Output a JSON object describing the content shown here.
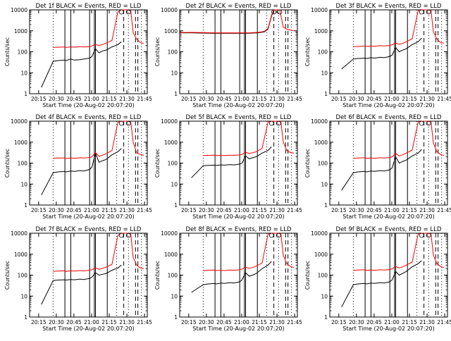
{
  "chart_data": [
    {
      "type": "line",
      "title": "Det 1f BLACK = Events, RED = LLD",
      "xlabel": "Start Time (20-Aug-02 20:07:20)",
      "ylabel": "Counts/sec",
      "y_scale": "log",
      "ylim": [
        1,
        10000
      ],
      "x_ticks": [
        "20:15",
        "20:30",
        "20:45",
        "21:00",
        "21:15",
        "21:30",
        "21:45"
      ],
      "y_ticks": [
        "1",
        "10",
        "100",
        "1000",
        "10000"
      ],
      "x_minutes": [
        10,
        20,
        24,
        30,
        31,
        35,
        38,
        43,
        46,
        51,
        53,
        56,
        59,
        62,
        65,
        70,
        75,
        78,
        80,
        84,
        86,
        88,
        91,
        94,
        97
      ],
      "series": [
        {
          "name": "Events",
          "color": "#000000",
          "values": [
            2,
            35,
            38,
            40,
            38,
            45,
            40,
            42,
            45,
            50,
            60,
            140,
            90,
            110,
            120,
            170,
            220,
            300,
            null,
            null,
            null,
            null,
            null,
            null,
            null
          ]
        },
        {
          "name": "LLD",
          "color": "#ff0000",
          "values": [
            null,
            160,
            165,
            170,
            160,
            170,
            165,
            175,
            170,
            175,
            190,
            220,
            200,
            220,
            260,
            350,
            8000,
            10000,
            10000,
            10000,
            9000,
            800,
            400,
            280,
            250
          ]
        }
      ],
      "black_vlines": [
        30,
        35,
        51,
        55,
        56,
        66
      ],
      "dashed_vlines": [
        80,
        90,
        92
      ],
      "dotted_vlines": [
        20,
        74,
        84,
        95
      ]
    },
    {
      "type": "line",
      "title": "Det 2f BLACK = Events, RED = LLD",
      "xlabel": "Start Time (20-Aug-02 20:07:20)",
      "ylabel": "Counts/sec",
      "y_scale": "log",
      "ylim": [
        1,
        10000
      ],
      "x_ticks": [
        "20:15",
        "20:30",
        "20:45",
        "21:00",
        "21:15",
        "21:30",
        "21:45"
      ],
      "y_ticks": [
        "1",
        "10",
        "100",
        "1000",
        "10000"
      ],
      "x_minutes": [
        0,
        10,
        20,
        30,
        40,
        50,
        60,
        66,
        70,
        72,
        75,
        78,
        80,
        82,
        85,
        88,
        91,
        94,
        97
      ],
      "series": [
        {
          "name": "Events",
          "color": "#000000",
          "values": [
            800,
            800,
            780,
            760,
            760,
            760,
            770,
            800,
            850,
            900,
            1200,
            5000,
            10000,
            10000,
            null,
            null,
            null,
            null,
            null
          ]
        },
        {
          "name": "LLD",
          "color": "#ff0000",
          "values": [
            820,
            840,
            820,
            800,
            800,
            800,
            810,
            840,
            900,
            950,
            1300,
            5500,
            10000,
            10000,
            10000,
            1500,
            1200,
            1100,
            1000
          ]
        }
      ],
      "black_vlines": [
        30,
        35,
        51,
        55,
        56,
        66
      ],
      "dashed_vlines": [
        80,
        90,
        92
      ],
      "dotted_vlines": [
        20,
        74,
        84,
        95
      ]
    },
    {
      "type": "line",
      "title": "Det 3f BLACK = Events, RED = LLD",
      "xlabel": "Start Time (20-Aug-02 20:07:20)",
      "ylabel": "Counts/sec",
      "y_scale": "log",
      "ylim": [
        1,
        10000
      ],
      "x_ticks": [
        "20:15",
        "20:30",
        "20:45",
        "21:00",
        "21:15",
        "21:30",
        "21:45"
      ],
      "y_ticks": [
        "1",
        "10",
        "100",
        "1000",
        "10000"
      ],
      "x_minutes": [
        10,
        20,
        24,
        30,
        31,
        35,
        38,
        43,
        46,
        51,
        53,
        56,
        59,
        62,
        65,
        70,
        75,
        78,
        80,
        84,
        86,
        88,
        91,
        94,
        97
      ],
      "series": [
        {
          "name": "Events",
          "color": "#000000",
          "values": [
            15,
            45,
            48,
            50,
            48,
            52,
            50,
            55,
            52,
            60,
            70,
            160,
            100,
            120,
            140,
            220,
            300,
            450,
            null,
            null,
            null,
            null,
            null,
            null,
            null
          ]
        },
        {
          "name": "LLD",
          "color": "#ff0000",
          "values": [
            null,
            175,
            180,
            190,
            180,
            190,
            185,
            195,
            190,
            200,
            215,
            260,
            230,
            250,
            300,
            420,
            9000,
            10000,
            10000,
            10000,
            9500,
            900,
            400,
            280,
            260
          ]
        }
      ],
      "black_vlines": [
        30,
        35,
        51,
        55,
        56,
        66
      ],
      "dashed_vlines": [
        80,
        90,
        92
      ],
      "dotted_vlines": [
        20,
        74,
        84,
        95
      ]
    },
    {
      "type": "line",
      "title": "Det 4f BLACK = Events, RED = LLD",
      "xlabel": "Start Time (20-Aug-02 20:07:20)",
      "ylabel": "Counts/sec",
      "y_scale": "log",
      "ylim": [
        1,
        10000
      ],
      "x_ticks": [
        "20:15",
        "20:30",
        "20:45",
        "21:00",
        "21:15",
        "21:30",
        "21:45"
      ],
      "y_ticks": [
        "1",
        "10",
        "100",
        "1000",
        "10000"
      ],
      "x_minutes": [
        10,
        20,
        24,
        30,
        31,
        35,
        38,
        43,
        46,
        51,
        53,
        56,
        59,
        62,
        65,
        70,
        75,
        78,
        80,
        84,
        86,
        88,
        91,
        94,
        97
      ],
      "series": [
        {
          "name": "Events",
          "color": "#000000",
          "values": [
            3,
            35,
            38,
            40,
            38,
            42,
            40,
            44,
            42,
            50,
            65,
            300,
            110,
            130,
            150,
            250,
            350,
            500,
            null,
            null,
            null,
            null,
            null,
            null,
            null
          ]
        },
        {
          "name": "LLD",
          "color": "#ff0000",
          "values": [
            null,
            170,
            175,
            175,
            165,
            175,
            170,
            180,
            175,
            185,
            200,
            320,
            210,
            240,
            280,
            400,
            9000,
            10000,
            10000,
            10000,
            9000,
            1000,
            300,
            260,
            240
          ]
        }
      ],
      "black_vlines": [
        30,
        35,
        51,
        55,
        56,
        66
      ],
      "dashed_vlines": [
        80,
        90,
        92
      ],
      "dotted_vlines": [
        20,
        74,
        84,
        95
      ]
    },
    {
      "type": "line",
      "title": "Det 5f BLACK = Events, RED = LLD",
      "xlabel": "Start Time (20-Aug-02 20:07:20)",
      "ylabel": "Counts/sec",
      "y_scale": "log",
      "ylim": [
        1,
        10000
      ],
      "x_ticks": [
        "20:15",
        "20:30",
        "20:45",
        "21:00",
        "21:15",
        "21:30",
        "21:45"
      ],
      "y_ticks": [
        "1",
        "10",
        "100",
        "1000",
        "10000"
      ],
      "x_minutes": [
        10,
        20,
        24,
        30,
        31,
        35,
        38,
        43,
        46,
        51,
        53,
        56,
        59,
        62,
        65,
        70,
        75,
        78,
        80,
        84,
        86,
        88,
        91,
        94,
        97
      ],
      "series": [
        {
          "name": "Events",
          "color": "#000000",
          "values": [
            20,
            75,
            78,
            80,
            78,
            82,
            80,
            85,
            82,
            90,
            100,
            220,
            160,
            180,
            200,
            300,
            400,
            600,
            null,
            null,
            null,
            null,
            null,
            null,
            null
          ]
        },
        {
          "name": "LLD",
          "color": "#ff0000",
          "values": [
            null,
            230,
            235,
            240,
            230,
            235,
            230,
            240,
            235,
            245,
            260,
            330,
            290,
            310,
            350,
            500,
            9000,
            10000,
            10000,
            10000,
            9500,
            1000,
            400,
            320,
            300
          ]
        }
      ],
      "black_vlines": [
        30,
        35,
        51,
        55,
        56,
        66
      ],
      "dashed_vlines": [
        80,
        90,
        92
      ],
      "dotted_vlines": [
        20,
        74,
        84,
        95
      ]
    },
    {
      "type": "line",
      "title": "Det 6f BLACK = Events, RED = LLD",
      "xlabel": "Start Time (20-Aug-02 20:07:20)",
      "ylabel": "Counts/sec",
      "y_scale": "log",
      "ylim": [
        1,
        10000
      ],
      "x_ticks": [
        "20:15",
        "20:30",
        "20:45",
        "21:00",
        "21:15",
        "21:30",
        "21:45"
      ],
      "y_ticks": [
        "1",
        "10",
        "100",
        "1000",
        "10000"
      ],
      "x_minutes": [
        10,
        20,
        24,
        30,
        31,
        35,
        38,
        43,
        46,
        51,
        53,
        56,
        59,
        62,
        65,
        70,
        75,
        78,
        80,
        84,
        86,
        88,
        91,
        94,
        97
      ],
      "series": [
        {
          "name": "Events",
          "color": "#000000",
          "values": [
            5,
            35,
            38,
            40,
            38,
            42,
            40,
            44,
            42,
            48,
            60,
            200,
            100,
            120,
            140,
            220,
            300,
            450,
            null,
            null,
            null,
            null,
            null,
            null,
            null
          ]
        },
        {
          "name": "LLD",
          "color": "#ff0000",
          "values": [
            null,
            170,
            175,
            180,
            170,
            175,
            170,
            180,
            175,
            185,
            200,
            290,
            220,
            250,
            300,
            420,
            9000,
            10000,
            10000,
            10000,
            9500,
            900,
            350,
            260,
            230
          ]
        }
      ],
      "black_vlines": [
        30,
        35,
        51,
        55,
        56,
        66
      ],
      "dashed_vlines": [
        80,
        90,
        92
      ],
      "dotted_vlines": [
        20,
        74,
        84,
        95
      ]
    },
    {
      "type": "line",
      "title": "Det 7f BLACK = Events, RED = LLD",
      "xlabel": "Start Time (20-Aug-02 20:07:20)",
      "ylabel": "Counts/sec",
      "y_scale": "log",
      "ylim": [
        1,
        10000
      ],
      "x_ticks": [
        "20:15",
        "20:30",
        "20:45",
        "21:00",
        "21:15",
        "21:30",
        "21:45"
      ],
      "y_ticks": [
        "1",
        "10",
        "100",
        "1000",
        "10000"
      ],
      "x_minutes": [
        10,
        20,
        24,
        30,
        31,
        35,
        38,
        43,
        46,
        51,
        53,
        56,
        59,
        62,
        65,
        70,
        75,
        78,
        80,
        84,
        86,
        88,
        91,
        94,
        97
      ],
      "series": [
        {
          "name": "Events",
          "color": "#000000",
          "values": [
            4,
            55,
            58,
            60,
            58,
            62,
            60,
            65,
            62,
            70,
            80,
            130,
            100,
            110,
            120,
            170,
            220,
            300,
            null,
            null,
            null,
            null,
            null,
            null,
            null
          ]
        },
        {
          "name": "LLD",
          "color": "#ff0000",
          "values": [
            null,
            150,
            155,
            160,
            150,
            160,
            155,
            165,
            160,
            170,
            180,
            220,
            190,
            210,
            240,
            330,
            8000,
            10000,
            10000,
            10000,
            9000,
            700,
            300,
            220,
            200
          ]
        }
      ],
      "black_vlines": [
        30,
        35,
        51,
        55,
        56,
        66
      ],
      "dashed_vlines": [
        80,
        90,
        92
      ],
      "dotted_vlines": [
        20,
        74,
        84,
        95
      ]
    },
    {
      "type": "line",
      "title": "Det 8f BLACK = Events, RED = LLD",
      "xlabel": "Start Time (20-Aug-02 20:07:20)",
      "ylabel": "Counts/sec",
      "y_scale": "log",
      "ylim": [
        1,
        10000
      ],
      "x_ticks": [
        "20:15",
        "20:30",
        "20:45",
        "21:00",
        "21:15",
        "21:30",
        "21:45"
      ],
      "y_ticks": [
        "1",
        "10",
        "100",
        "1000",
        "10000"
      ],
      "x_minutes": [
        10,
        20,
        24,
        30,
        31,
        35,
        38,
        43,
        46,
        51,
        53,
        56,
        59,
        62,
        65,
        70,
        75,
        78,
        80,
        84,
        86,
        88,
        91,
        94,
        97
      ],
      "series": [
        {
          "name": "Events",
          "color": "#000000",
          "values": [
            15,
            35,
            38,
            40,
            38,
            42,
            40,
            44,
            42,
            48,
            60,
            130,
            90,
            100,
            120,
            200,
            300,
            450,
            null,
            null,
            null,
            null,
            null,
            null,
            null
          ]
        },
        {
          "name": "LLD",
          "color": "#ff0000",
          "values": [
            null,
            165,
            170,
            175,
            165,
            170,
            165,
            175,
            170,
            180,
            195,
            240,
            210,
            230,
            270,
            380,
            9000,
            10000,
            10000,
            10000,
            9500,
            900,
            350,
            260,
            230
          ]
        }
      ],
      "black_vlines": [
        30,
        35,
        51,
        55,
        56,
        66
      ],
      "dashed_vlines": [
        80,
        90,
        92
      ],
      "dotted_vlines": [
        20,
        74,
        84,
        95
      ]
    },
    {
      "type": "line",
      "title": "Det 9f BLACK = Events, RED = LLD",
      "xlabel": "Start Time (20-Aug-02 20:07:20)",
      "ylabel": "Counts/sec",
      "y_scale": "log",
      "ylim": [
        1,
        10000
      ],
      "x_ticks": [
        "20:15",
        "20:30",
        "20:45",
        "21:00",
        "21:15",
        "21:30",
        "21:45"
      ],
      "y_ticks": [
        "1",
        "10",
        "100",
        "1000",
        "10000"
      ],
      "x_minutes": [
        10,
        20,
        24,
        30,
        31,
        35,
        38,
        43,
        46,
        51,
        53,
        56,
        59,
        62,
        65,
        70,
        75,
        78,
        80,
        84,
        86,
        88,
        91,
        94,
        97
      ],
      "series": [
        {
          "name": "Events",
          "color": "#000000",
          "values": [
            3,
            35,
            38,
            40,
            38,
            42,
            40,
            44,
            42,
            48,
            60,
            150,
            100,
            120,
            150,
            250,
            350,
            500,
            null,
            null,
            null,
            null,
            null,
            null,
            null
          ]
        },
        {
          "name": "LLD",
          "color": "#ff0000",
          "values": [
            null,
            170,
            175,
            180,
            170,
            175,
            170,
            180,
            175,
            185,
            200,
            260,
            220,
            250,
            300,
            420,
            9000,
            10000,
            10000,
            10000,
            9500,
            900,
            350,
            260,
            230
          ]
        }
      ],
      "black_vlines": [
        30,
        35,
        51,
        55,
        56,
        66
      ],
      "dashed_vlines": [
        80,
        90,
        92
      ],
      "dotted_vlines": [
        20,
        74,
        84,
        95
      ]
    }
  ]
}
